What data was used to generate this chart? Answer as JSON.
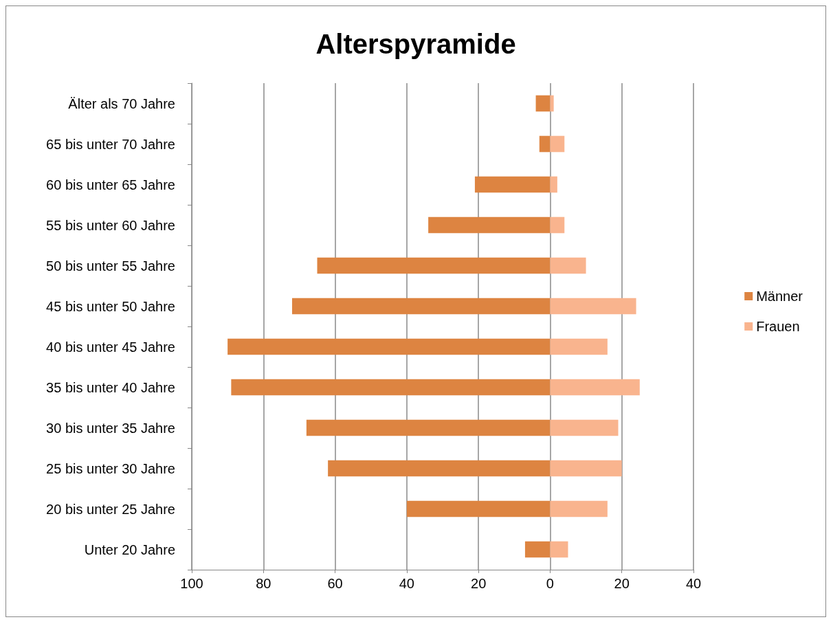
{
  "chart_data": {
    "type": "bar",
    "orientation": "horizontal",
    "title": "Alterspyramide",
    "categories": [
      "Älter als 70 Jahre",
      "65 bis unter 70 Jahre",
      "60 bis unter 65 Jahre",
      "55 bis unter 60 Jahre",
      "50 bis unter 55 Jahre",
      "45 bis unter 50 Jahre",
      "40 bis unter 45 Jahre",
      "35 bis unter 40 Jahre",
      "30 bis unter 35 Jahre",
      "25 bis unter 30 Jahre",
      "20 bis unter 25 Jahre",
      "Unter 20 Jahre"
    ],
    "series": [
      {
        "name": "Männer",
        "color": "#dd8441",
        "values": [
          -4,
          -3,
          -21,
          -34,
          -65,
          -72,
          -90,
          -89,
          -68,
          -62,
          -40,
          -7
        ]
      },
      {
        "name": "Frauen",
        "color": "#f9b48e",
        "values": [
          1,
          4,
          2,
          4,
          10,
          24,
          16,
          25,
          19,
          20,
          16,
          5
        ]
      }
    ],
    "xlim": [
      -100,
      40
    ],
    "xticks": [
      {
        "value": -100,
        "label": "100"
      },
      {
        "value": -80,
        "label": "80"
      },
      {
        "value": -60,
        "label": "60"
      },
      {
        "value": -40,
        "label": "40"
      },
      {
        "value": -20,
        "label": "20"
      },
      0,
      20,
      40
    ],
    "stacked": true,
    "grid": "x",
    "legend": "right"
  }
}
